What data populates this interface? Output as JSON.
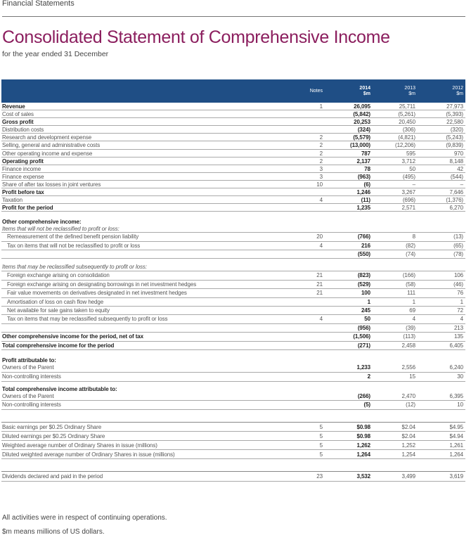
{
  "header": {
    "section": "Financial Statements",
    "title": "Consolidated Statement of Comprehensive Income",
    "subtitle": "for the year ended 31 December"
  },
  "table": {
    "columns": {
      "notes": "Notes",
      "y2014": "2014",
      "y2013": "2013",
      "y2012": "2012",
      "unit": "$m"
    },
    "sections": [
      {
        "rows": [
          {
            "label": "Revenue",
            "notes": "1",
            "v2014": "26,095",
            "v2013": "25,711",
            "v2012": "27,973",
            "style": "bold"
          },
          {
            "label": "Cost of sales",
            "notes": "",
            "v2014": "(5,842)",
            "v2013": "(5,261)",
            "v2012": "(5,393)",
            "style": ""
          },
          {
            "label": "Gross profit",
            "notes": "",
            "v2014": "20,253",
            "v2013": "20,450",
            "v2012": "22,580",
            "style": "bold"
          },
          {
            "label": "Distribution costs",
            "notes": "",
            "v2014": "(324)",
            "v2013": "(306)",
            "v2012": "(320)",
            "style": ""
          },
          {
            "label": "Research and development expense",
            "notes": "2",
            "v2014": "(5,579)",
            "v2013": "(4,821)",
            "v2012": "(5,243)",
            "style": ""
          },
          {
            "label": "Selling, general and administrative costs",
            "notes": "2",
            "v2014": "(13,000)",
            "v2013": "(12,206)",
            "v2012": "(9,839)",
            "style": ""
          },
          {
            "label": "Other operating income and expense",
            "notes": "2",
            "v2014": "787",
            "v2013": "595",
            "v2012": "970",
            "style": ""
          },
          {
            "label": "Operating profit",
            "notes": "2",
            "v2014": "2,137",
            "v2013": "3,712",
            "v2012": "8,148",
            "style": "bold"
          },
          {
            "label": "Finance income",
            "notes": "3",
            "v2014": "78",
            "v2013": "50",
            "v2012": "42",
            "style": ""
          },
          {
            "label": "Finance expense",
            "notes": "3",
            "v2014": "(963)",
            "v2013": "(495)",
            "v2012": "(544)",
            "style": ""
          },
          {
            "label": "Share of after tax losses in joint ventures",
            "notes": "10",
            "v2014": "(6)",
            "v2013": "–",
            "v2012": "–",
            "style": ""
          },
          {
            "label": "Profit before tax",
            "notes": "",
            "v2014": "1,246",
            "v2013": "3,267",
            "v2012": "7,646",
            "style": "bold"
          },
          {
            "label": "Taxation",
            "notes": "4",
            "v2014": "(11)",
            "v2013": "(696)",
            "v2012": "(1,376)",
            "style": ""
          },
          {
            "label": "Profit for the period",
            "notes": "",
            "v2014": "1,235",
            "v2013": "2,571",
            "v2012": "6,270",
            "style": "bold"
          }
        ]
      },
      {
        "rows": [
          {
            "label": "Other comprehensive income:",
            "style": "heading"
          },
          {
            "label": "Items that will not be reclassified to profit or loss:",
            "style": "subheading"
          },
          {
            "label": "Remeasurement of the defined benefit pension liability",
            "notes": "20",
            "v2014": "(766)",
            "v2013": "8",
            "v2012": "(13)",
            "style": "indent"
          },
          {
            "label": "Tax on items that will not be reclassified to profit or loss",
            "notes": "4",
            "v2014": "216",
            "v2013": "(82)",
            "v2012": "(65)",
            "style": "indent"
          },
          {
            "label": "",
            "notes": "",
            "v2014": "(550)",
            "v2013": "(74)",
            "v2012": "(78)",
            "style": ""
          },
          {
            "label": "Items that may be reclassified subsequently to profit or loss:",
            "style": "subheading gap"
          },
          {
            "label": "Foreign exchange arising on consolidation",
            "notes": "21",
            "v2014": "(823)",
            "v2013": "(166)",
            "v2012": "106",
            "style": "indent"
          },
          {
            "label": "Foreign exchange arising on designating borrowings in net investment hedges",
            "notes": "21",
            "v2014": "(529)",
            "v2013": "(58)",
            "v2012": "(46)",
            "style": "indent"
          },
          {
            "label": "Fair value movements on derivatives designated in net investment hedges",
            "notes": "21",
            "v2014": "100",
            "v2013": "111",
            "v2012": "76",
            "style": "indent"
          },
          {
            "label": "Amortisation of loss on cash flow hedge",
            "notes": "",
            "v2014": "1",
            "v2013": "1",
            "v2012": "1",
            "style": "indent"
          },
          {
            "label": "Net available for sale gains taken to equity",
            "notes": "",
            "v2014": "245",
            "v2013": "69",
            "v2012": "72",
            "style": "indent"
          },
          {
            "label": "Tax on items that may be reclassified subsequently to profit or loss",
            "notes": "4",
            "v2014": "50",
            "v2013": "4",
            "v2012": "4",
            "style": "indent"
          },
          {
            "label": "",
            "notes": "",
            "v2014": "(956)",
            "v2013": "(39)",
            "v2012": "213",
            "style": ""
          },
          {
            "label": "Other comprehensive income for the period, net of tax",
            "notes": "",
            "v2014": "(1,506)",
            "v2013": "(113)",
            "v2012": "135",
            "style": "bold"
          },
          {
            "label": "Total comprehensive income for the period",
            "notes": "",
            "v2014": "(271)",
            "v2013": "2,458",
            "v2012": "6,405",
            "style": "bold"
          }
        ]
      },
      {
        "rows": [
          {
            "label": "Profit attributable to:",
            "style": "heading"
          },
          {
            "label": "Owners of the Parent",
            "notes": "",
            "v2014": "1,233",
            "v2013": "2,556",
            "v2012": "6,240",
            "style": ""
          },
          {
            "label": "Non-controlling interests",
            "notes": "",
            "v2014": "2",
            "v2013": "15",
            "v2012": "30",
            "style": ""
          },
          {
            "label": "Total comprehensive income attributable to:",
            "style": "heading gap"
          },
          {
            "label": "Owners of the Parent",
            "notes": "",
            "v2014": "(266)",
            "v2013": "2,470",
            "v2012": "6,395",
            "style": ""
          },
          {
            "label": "Non-controlling interests",
            "notes": "",
            "v2014": "(5)",
            "v2013": "(12)",
            "v2012": "10",
            "style": ""
          }
        ]
      },
      {
        "rows": [
          {
            "label": "Basic earnings per $0.25 Ordinary Share",
            "notes": "5",
            "v2014": "$0.98",
            "v2013": "$2.04",
            "v2012": "$4.95",
            "style": ""
          },
          {
            "label": "Diluted earnings per $0.25 Ordinary Share",
            "notes": "5",
            "v2014": "$0.98",
            "v2013": "$2.04",
            "v2012": "$4.94",
            "style": ""
          },
          {
            "label": "Weighted average number of Ordinary Shares in issue (millions)",
            "notes": "5",
            "v2014": "1,262",
            "v2013": "1,252",
            "v2012": "1,261",
            "style": ""
          },
          {
            "label": "Diluted weighted average number of Ordinary Shares in issue (millions)",
            "notes": "5",
            "v2014": "1,264",
            "v2013": "1,254",
            "v2012": "1,264",
            "style": ""
          }
        ]
      },
      {
        "rows": [
          {
            "label": "Dividends declared and paid in the period",
            "notes": "23",
            "v2014": "3,532",
            "v2013": "3,499",
            "v2012": "3,619",
            "style": ""
          }
        ]
      }
    ]
  },
  "footnotes": [
    "All activities were in respect of continuing operations.",
    "$m means millions of US dollars."
  ]
}
